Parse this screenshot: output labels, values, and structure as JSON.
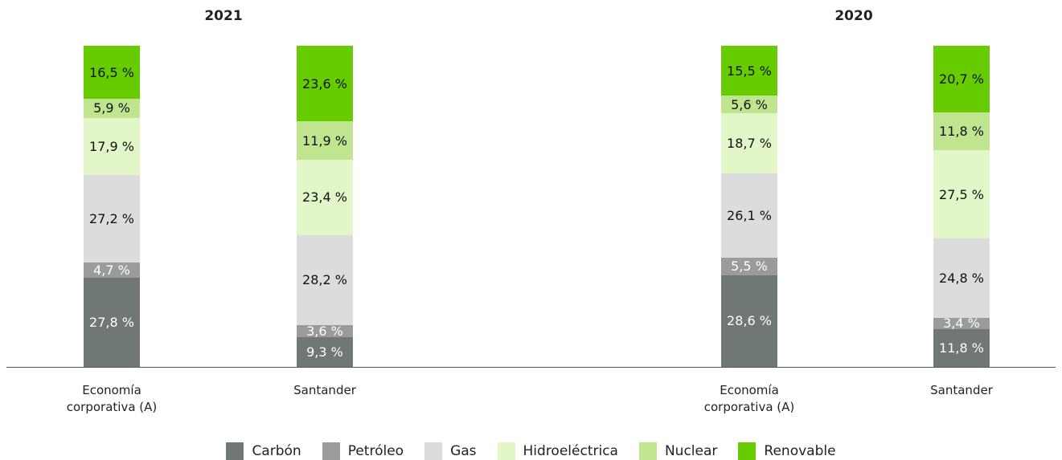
{
  "chart_data": [
    {
      "type": "stacked_bar",
      "title": "2021",
      "categories": [
        "Economía corporativa (A)",
        "Santander"
      ],
      "series": [
        {
          "name": "Carbón",
          "color": "#6f7777",
          "label_color": "#ffffff",
          "values": [
            27.8,
            9.3
          ],
          "value_labels": [
            "27,8 %",
            "9,3 %"
          ]
        },
        {
          "name": "Petróleo",
          "color": "#9b9b9b",
          "label_color": "#ffffff",
          "values": [
            4.7,
            3.6
          ],
          "value_labels": [
            "4,7 %",
            "3,6 %"
          ]
        },
        {
          "name": "Gas",
          "color": "#dcdcdc",
          "label_color": "#111111",
          "values": [
            27.2,
            28.2
          ],
          "value_labels": [
            "27,2 %",
            "28,2 %"
          ]
        },
        {
          "name": "Hidroeléctrica",
          "color": "#e2f6c8",
          "label_color": "#111111",
          "values": [
            17.9,
            23.4
          ],
          "value_labels": [
            "17,9 %",
            "23,4 %"
          ]
        },
        {
          "name": "Nuclear",
          "color": "#bfe68f",
          "label_color": "#111111",
          "values": [
            5.9,
            11.9
          ],
          "value_labels": [
            "5,9 %",
            "11,9 %"
          ]
        },
        {
          "name": "Renovable",
          "color": "#66cc00",
          "label_color": "#111111",
          "values": [
            16.5,
            23.6
          ],
          "value_labels": [
            "16,5 %",
            "23,6 %"
          ]
        }
      ]
    },
    {
      "type": "stacked_bar",
      "title": "2020",
      "categories": [
        "Economía corporativa (A)",
        "Santander"
      ],
      "series": [
        {
          "name": "Carbón",
          "color": "#6f7777",
          "label_color": "#ffffff",
          "values": [
            28.6,
            11.8
          ],
          "value_labels": [
            "28,6 %",
            "11,8 %"
          ]
        },
        {
          "name": "Petróleo",
          "color": "#9b9b9b",
          "label_color": "#ffffff",
          "values": [
            5.5,
            3.4
          ],
          "value_labels": [
            "5,5 %",
            "3,4 %"
          ]
        },
        {
          "name": "Gas",
          "color": "#dcdcdc",
          "label_color": "#111111",
          "values": [
            26.1,
            24.8
          ],
          "value_labels": [
            "26,1 %",
            "24,8 %"
          ]
        },
        {
          "name": "Hidroeléctrica",
          "color": "#e2f6c8",
          "label_color": "#111111",
          "values": [
            18.7,
            27.5
          ],
          "value_labels": [
            "18,7 %",
            "27,5 %"
          ]
        },
        {
          "name": "Nuclear",
          "color": "#bfe68f",
          "label_color": "#111111",
          "values": [
            5.6,
            11.8
          ],
          "value_labels": [
            "5,6 %",
            "11,8 %"
          ]
        },
        {
          "name": "Renovable",
          "color": "#66cc00",
          "label_color": "#111111",
          "values": [
            15.5,
            20.7
          ],
          "value_labels": [
            "15,5 %",
            "20,7 %"
          ]
        }
      ]
    }
  ]
}
